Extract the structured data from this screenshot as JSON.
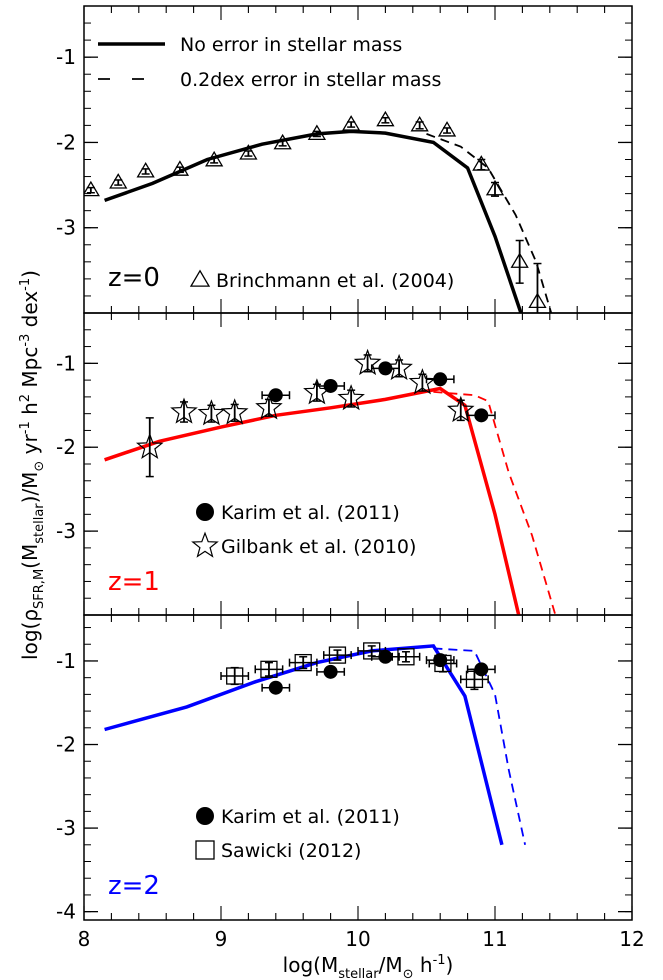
{
  "chart_data": [
    {
      "type": "line",
      "panel_label": "z=0",
      "panel_label_color": "#000000",
      "xlim": [
        8,
        12
      ],
      "ylim": [
        -4.0,
        -0.4
      ],
      "y_ticks": [
        -3,
        -2,
        -1
      ],
      "y_tick_labels": [
        "-3",
        "-2",
        "-1"
      ],
      "legend_placement": "top-left",
      "line_legend": [
        {
          "label": "No error in stellar mass",
          "style": "solid"
        },
        {
          "label": "0.2dex error in stellar mass",
          "style": "dashed"
        }
      ],
      "series": [
        {
          "name": "No error in stellar mass",
          "color": "#000000",
          "style": "solid",
          "x": [
            8.15,
            8.5,
            8.9,
            9.3,
            9.7,
            9.95,
            10.2,
            10.55,
            10.8,
            11.0,
            11.2
          ],
          "y": [
            -2.68,
            -2.48,
            -2.2,
            -2.02,
            -1.9,
            -1.87,
            -1.89,
            -2.0,
            -2.3,
            -3.1,
            -4.05
          ]
        },
        {
          "name": "0.2dex error in stellar mass",
          "color": "#000000",
          "style": "dashed",
          "x": [
            10.5,
            10.75,
            10.95,
            11.15,
            11.3,
            11.42
          ],
          "y": [
            -1.9,
            -2.05,
            -2.3,
            -2.85,
            -3.4,
            -4.05
          ]
        }
      ],
      "observations": [
        {
          "name": "Brinchmann et al. (2004)",
          "marker": "triangle",
          "color": "#000000",
          "x": [
            8.05,
            8.25,
            8.45,
            8.7,
            8.95,
            9.2,
            9.45,
            9.7,
            9.95,
            10.2,
            10.45,
            10.65,
            10.9,
            11.0,
            11.18,
            11.31
          ],
          "y": [
            -2.56,
            -2.47,
            -2.34,
            -2.32,
            -2.21,
            -2.13,
            -2.01,
            -1.9,
            -1.79,
            -1.74,
            -1.8,
            -1.86,
            -2.26,
            -2.55,
            -3.4,
            -3.87
          ],
          "yerr": [
            0.03,
            0.03,
            0.03,
            0.03,
            0.03,
            0.03,
            0.03,
            0.03,
            0.03,
            0.03,
            0.04,
            0.03,
            0.06,
            0.08,
            0.25,
            0.45
          ]
        }
      ],
      "obs_legend": [
        {
          "marker": "triangle",
          "label": "Brinchmann et al. (2004)"
        }
      ]
    },
    {
      "type": "line",
      "panel_label": "z=1",
      "panel_label_color": "#ff0000",
      "xlim": [
        8,
        12
      ],
      "ylim": [
        -4.0,
        -0.4
      ],
      "y_ticks": [
        -3,
        -2,
        -1
      ],
      "y_tick_labels": [
        "-3",
        "-2",
        "-1"
      ],
      "series": [
        {
          "name": "",
          "color": "#ff0000",
          "style": "solid",
          "x": [
            8.15,
            8.55,
            9.0,
            9.4,
            9.8,
            10.2,
            10.6,
            10.78,
            11.0,
            11.18
          ],
          "y": [
            -2.15,
            -1.93,
            -1.76,
            -1.62,
            -1.53,
            -1.43,
            -1.3,
            -1.5,
            -2.8,
            -4.05
          ]
        },
        {
          "name": "",
          "color": "#ff0000",
          "style": "dashed",
          "x": [
            10.55,
            10.85,
            10.95,
            11.1,
            11.27,
            11.45
          ],
          "y": [
            -1.34,
            -1.38,
            -1.45,
            -2.3,
            -3.05,
            -4.05
          ]
        }
      ],
      "observations": [
        {
          "name": "Karim et al. (2011)",
          "marker": "circle",
          "color": "#000000",
          "x": [
            9.4,
            9.8,
            10.2,
            10.6,
            10.9
          ],
          "y": [
            -1.38,
            -1.27,
            -1.06,
            -1.19,
            -1.62
          ],
          "xerr": [
            0.1,
            0.1,
            0.1,
            0.1,
            0.1
          ]
        },
        {
          "name": "Gilbank et al. (2010)",
          "marker": "star",
          "color": "#000000",
          "x": [
            8.48,
            8.73,
            8.93,
            9.1,
            9.35,
            9.7,
            9.95,
            10.07,
            10.3,
            10.47,
            10.75
          ],
          "y": [
            -2.0,
            -1.58,
            -1.6,
            -1.59,
            -1.53,
            -1.35,
            -1.42,
            -1.0,
            -1.06,
            -1.23,
            -1.56
          ],
          "yerr": [
            0.35,
            0.12,
            0.1,
            0.1,
            0.1,
            0.1,
            0.1,
            0.1,
            0.1,
            0.1,
            0.12
          ]
        }
      ],
      "obs_legend": [
        {
          "marker": "circle",
          "label": "Karim et al. (2011)"
        },
        {
          "marker": "star",
          "label": "Gilbank et al. (2010)"
        }
      ]
    },
    {
      "type": "line",
      "panel_label": "z=2",
      "panel_label_color": "#0000ff",
      "xlim": [
        8,
        12
      ],
      "ylim": [
        -4.1,
        -0.45
      ],
      "y_ticks": [
        -4,
        -3,
        -2,
        -1
      ],
      "y_tick_labels": [
        "-4",
        "-3",
        "-2",
        "-1"
      ],
      "xlabel": "log(M_stellar/M_sun h^-1)",
      "x_ticks": [
        8,
        9,
        10,
        11,
        12
      ],
      "x_tick_labels": [
        "8",
        "9",
        "10",
        "11",
        "12"
      ],
      "series": [
        {
          "name": "",
          "color": "#0000ff",
          "style": "solid",
          "x": [
            8.15,
            8.75,
            9.25,
            9.7,
            10.1,
            10.55,
            10.78,
            11.05
          ],
          "y": [
            -1.82,
            -1.55,
            -1.25,
            -1.02,
            -0.88,
            -0.82,
            -1.42,
            -3.2
          ]
        },
        {
          "name": "",
          "color": "#0000ff",
          "style": "dashed",
          "x": [
            10.55,
            10.85,
            11.0,
            11.1,
            11.22
          ],
          "y": [
            -0.85,
            -0.88,
            -1.4,
            -2.3,
            -3.2
          ]
        }
      ],
      "observations": [
        {
          "name": "Karim et al. (2011)",
          "marker": "circle",
          "color": "#000000",
          "x": [
            9.4,
            9.8,
            10.2,
            10.6,
            10.9
          ],
          "y": [
            -1.32,
            -1.13,
            -0.95,
            -0.99,
            -1.1
          ],
          "xerr": [
            0.1,
            0.1,
            0.1,
            0.1,
            0.1
          ]
        },
        {
          "name": "Sawicki (2012)",
          "marker": "square",
          "color": "#000000",
          "x": [
            9.1,
            9.35,
            9.6,
            9.85,
            10.1,
            10.35,
            10.62,
            10.85
          ],
          "y": [
            -1.18,
            -1.1,
            -1.02,
            -0.93,
            -0.88,
            -0.95,
            -1.03,
            -1.22
          ],
          "xerr": [
            0.1,
            0.1,
            0.1,
            0.1,
            0.1,
            0.1,
            0.1,
            0.1
          ],
          "yerr": [
            0.1,
            0.08,
            0.07,
            0.06,
            0.06,
            0.06,
            0.1,
            0.12
          ]
        }
      ],
      "obs_legend": [
        {
          "marker": "circle",
          "label": "Karim et al. (2011)"
        },
        {
          "marker": "square",
          "label": "Sawicki (2012)"
        }
      ]
    }
  ],
  "ylabel": "log(ρ_SFR,M(M_stellar)/M_sun yr^-1 h^2 Mpc^-3 dex^-1)",
  "ylabel_parts": {
    "p1": "log(ρ",
    "s1": "SFR,M",
    "p2": "(M",
    "s2": "stellar",
    "p3": ")/M",
    "sun": "⊙",
    "p4": " yr",
    "e1": "-1",
    "p5": " h",
    "e2": "2",
    "p6": " Mpc",
    "e3": "-3",
    "p7": " dex",
    "e4": "-1",
    "p8": ")"
  },
  "xlabel_parts": {
    "p1": "log(M",
    "s1": "stellar",
    "p2": "/M",
    "sun": "⊙",
    "p3": " h",
    "e1": "-1",
    "p4": ")"
  }
}
